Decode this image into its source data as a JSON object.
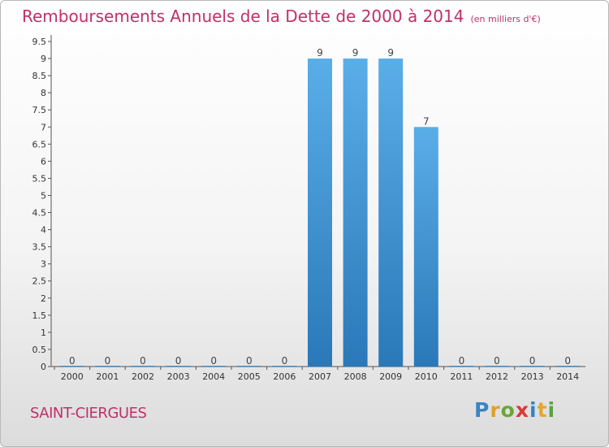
{
  "header": {
    "title": "Remboursements Annuels de la Dette de 2000 à 2014",
    "unit": "(en milliers d'€)"
  },
  "footer": {
    "commune": "SAINT-CIERGUES",
    "logo_letters": [
      "P",
      "r",
      "o",
      "x",
      "i",
      "t",
      "i"
    ],
    "logo_colors": [
      "#3b84c4",
      "#e2a12a",
      "#68a639",
      "#d93a3a",
      "#2f86c8",
      "#e3a72c",
      "#58a33e"
    ]
  },
  "chart_data": {
    "type": "bar",
    "categories": [
      "2000",
      "2001",
      "2002",
      "2003",
      "2004",
      "2005",
      "2006",
      "2007",
      "2008",
      "2009",
      "2010",
      "2011",
      "2012",
      "2013",
      "2014"
    ],
    "values": [
      0,
      0,
      0,
      0,
      0,
      0,
      0,
      9,
      9,
      9,
      7,
      0,
      0,
      0,
      0
    ],
    "data_labels": [
      "0",
      "0",
      "0",
      "0",
      "0",
      "0",
      "0",
      "9",
      "9",
      "9",
      "7",
      "0",
      "0",
      "0",
      "0"
    ],
    "yticks": [
      "0",
      "0.5",
      "1",
      "1.5",
      "2",
      "2.5",
      "3",
      "3.5",
      "4",
      "4.5",
      "5",
      "5.5",
      "6",
      "6.5",
      "7",
      "7.5",
      "8",
      "8.5",
      "9",
      "9.5"
    ],
    "ylim": [
      0,
      9.5
    ],
    "bar_color": "#3a8fd4",
    "grid": false
  }
}
